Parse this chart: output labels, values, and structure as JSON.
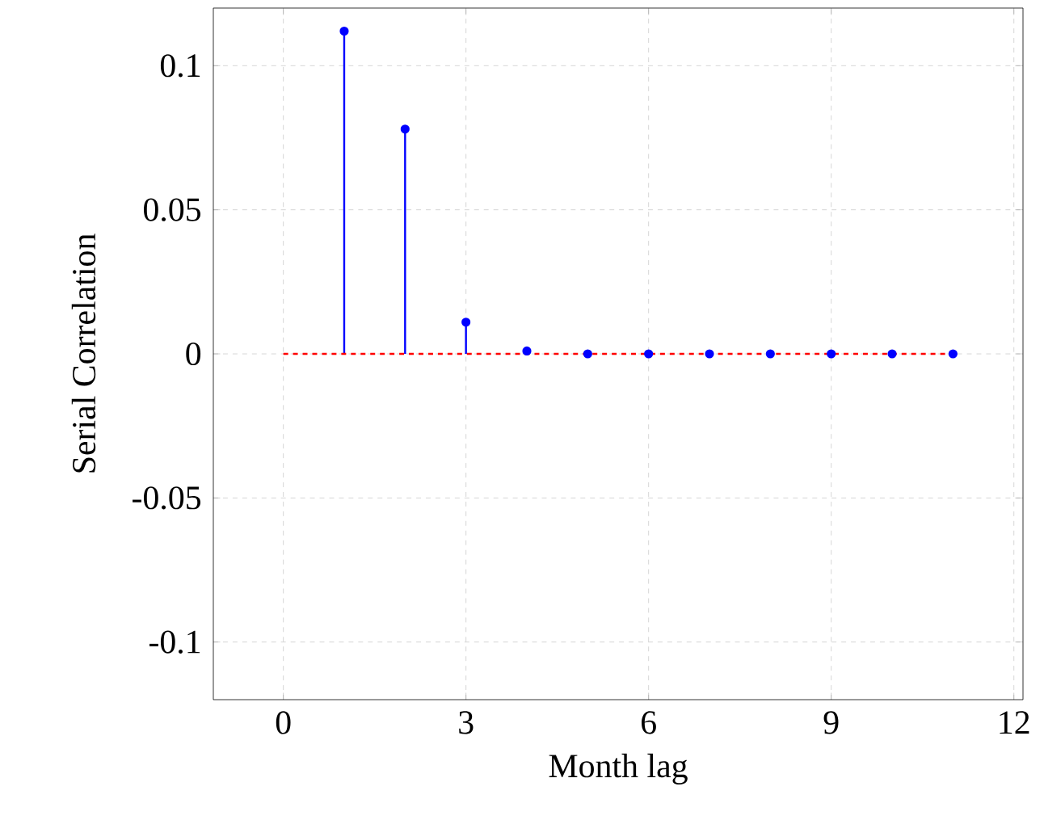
{
  "chart_data": {
    "type": "lollipop",
    "xlabel": "Month lag",
    "ylabel": "Serial Correlation",
    "xlim": [
      -1.15,
      12.15
    ],
    "ylim": [
      -0.12,
      0.12
    ],
    "xticks": [
      0,
      3,
      6,
      9,
      12
    ],
    "yticks": [
      -0.1,
      -0.05,
      0,
      0.05,
      0.1
    ],
    "grid": true,
    "marker": "circle",
    "series": [
      {
        "color": "#0000ff",
        "x": [
          1,
          2,
          3,
          4,
          5,
          6,
          7,
          8,
          9,
          10,
          11
        ],
        "values": [
          0.112,
          0.078,
          0.011,
          0.001,
          0,
          0,
          0,
          0,
          0,
          0,
          0
        ]
      },
      {
        "type": "line",
        "color": "#ff0000",
        "line_style": "dashed",
        "marker": "none",
        "x": [
          0,
          11
        ],
        "values": [
          0,
          0
        ]
      }
    ]
  }
}
